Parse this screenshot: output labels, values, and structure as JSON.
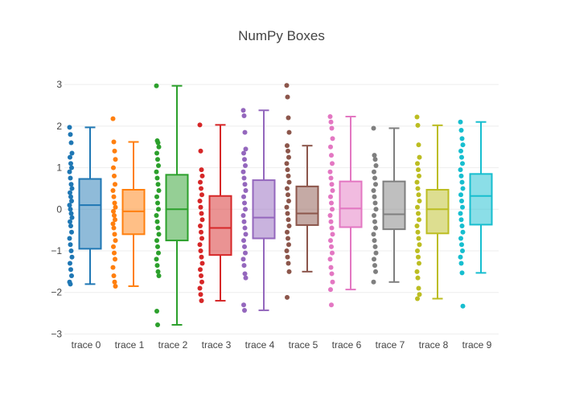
{
  "chart_data": {
    "type": "box",
    "title": "NumPy Boxes",
    "xlabel": "",
    "ylabel": "",
    "ylim": [
      -3.05,
      3.1
    ],
    "grid": true,
    "legend": "none",
    "y_ticks": [
      {
        "value": 3,
        "label": "3"
      },
      {
        "value": 2,
        "label": "2"
      },
      {
        "value": 1,
        "label": "1"
      },
      {
        "value": 0,
        "label": "0"
      },
      {
        "value": -1,
        "label": "−1"
      },
      {
        "value": -2,
        "label": "−2"
      },
      {
        "value": -3,
        "label": "−3"
      }
    ],
    "categories": [
      "trace 0",
      "trace 1",
      "trace 2",
      "trace 3",
      "trace 4",
      "trace 5",
      "trace 6",
      "trace 7",
      "trace 8",
      "trace 9"
    ],
    "series": [
      {
        "color": "#1f77b4",
        "min": -1.8,
        "q1": -0.95,
        "median": 0.1,
        "q3": 0.73,
        "max": 1.97,
        "points": [
          1.97,
          1.8,
          1.6,
          1.35,
          1.25,
          1.1,
          1.0,
          0.9,
          0.75,
          0.6,
          0.5,
          0.4,
          0.3,
          0.2,
          0.1,
          0.0,
          -0.1,
          -0.2,
          -0.3,
          -0.4,
          -0.55,
          -0.7,
          -0.85,
          -1.0,
          -1.15,
          -1.3,
          -1.45,
          -1.6,
          -1.75,
          -1.8
        ]
      },
      {
        "color": "#ff7f0e",
        "min": -1.85,
        "q1": -0.6,
        "median": -0.05,
        "q3": 0.47,
        "max": 1.62,
        "points": [
          2.18,
          1.62,
          1.4,
          1.2,
          1.0,
          0.8,
          0.6,
          0.45,
          0.3,
          0.15,
          0.05,
          -0.05,
          -0.15,
          -0.25,
          -0.35,
          -0.45,
          -0.6,
          -0.75,
          -0.9,
          -1.05,
          -1.2,
          -1.4,
          -1.6,
          -1.75,
          -1.85
        ]
      },
      {
        "color": "#2ca02c",
        "min": -2.78,
        "q1": -0.75,
        "median": 0.0,
        "q3": 0.83,
        "max": 2.97,
        "points": [
          2.97,
          1.65,
          1.6,
          1.5,
          1.35,
          1.2,
          1.05,
          0.9,
          0.75,
          0.6,
          0.45,
          0.3,
          0.15,
          0.0,
          -0.15,
          -0.3,
          -0.45,
          -0.6,
          -0.75,
          -0.9,
          -1.05,
          -1.2,
          -1.35,
          -1.5,
          -1.6,
          -2.45,
          -2.78
        ]
      },
      {
        "color": "#d62728",
        "min": -2.2,
        "q1": -1.1,
        "median": -0.45,
        "q3": 0.32,
        "max": 2.03,
        "points": [
          2.03,
          1.4,
          0.95,
          0.8,
          0.65,
          0.5,
          0.35,
          0.2,
          0.05,
          -0.1,
          -0.25,
          -0.4,
          -0.55,
          -0.7,
          -0.85,
          -1.0,
          -1.15,
          -1.3,
          -1.45,
          -1.6,
          -1.75,
          -1.9,
          -2.05,
          -2.2
        ]
      },
      {
        "color": "#9467bd",
        "min": -2.43,
        "q1": -0.7,
        "median": -0.2,
        "q3": 0.7,
        "max": 2.38,
        "points": [
          2.38,
          2.25,
          1.85,
          1.45,
          1.35,
          1.2,
          1.05,
          0.9,
          0.75,
          0.6,
          0.45,
          0.3,
          0.15,
          0.0,
          -0.15,
          -0.3,
          -0.45,
          -0.6,
          -0.75,
          -0.9,
          -1.05,
          -1.2,
          -1.35,
          -1.55,
          -1.65,
          -2.3,
          -2.43
        ]
      },
      {
        "color": "#8c564b",
        "min": -1.5,
        "q1": -0.38,
        "median": -0.1,
        "q3": 0.55,
        "max": 1.53,
        "points": [
          2.98,
          2.7,
          2.2,
          1.85,
          1.53,
          1.4,
          1.25,
          1.1,
          0.95,
          0.8,
          0.65,
          0.5,
          0.35,
          0.2,
          0.05,
          -0.1,
          -0.25,
          -0.4,
          -0.55,
          -0.7,
          -0.85,
          -1.0,
          -1.15,
          -1.3,
          -1.5,
          -2.12
        ]
      },
      {
        "color": "#e377c2",
        "min": -1.93,
        "q1": -0.43,
        "median": 0.02,
        "q3": 0.67,
        "max": 2.23,
        "points": [
          2.23,
          2.1,
          1.95,
          1.7,
          1.5,
          1.3,
          1.1,
          0.9,
          0.75,
          0.6,
          0.45,
          0.3,
          0.15,
          0.0,
          -0.15,
          -0.3,
          -0.45,
          -0.6,
          -0.75,
          -0.9,
          -1.05,
          -1.2,
          -1.4,
          -1.55,
          -1.75,
          -1.93,
          -2.3
        ]
      },
      {
        "color": "#7f7f7f",
        "min": -1.75,
        "q1": -0.48,
        "median": -0.12,
        "q3": 0.67,
        "max": 1.95,
        "points": [
          1.95,
          1.3,
          1.2,
          1.05,
          0.9,
          0.75,
          0.6,
          0.45,
          0.3,
          0.15,
          0.0,
          -0.15,
          -0.3,
          -0.45,
          -0.6,
          -0.75,
          -0.9,
          -1.05,
          -1.2,
          -1.35,
          -1.5,
          -1.75
        ]
      },
      {
        "color": "#bcbd22",
        "min": -2.15,
        "q1": -0.58,
        "median": 0.0,
        "q3": 0.47,
        "max": 2.02,
        "points": [
          2.22,
          2.02,
          1.55,
          1.25,
          1.1,
          0.95,
          0.8,
          0.65,
          0.5,
          0.35,
          0.2,
          0.05,
          -0.1,
          -0.25,
          -0.4,
          -0.55,
          -0.7,
          -0.85,
          -1.0,
          -1.15,
          -1.3,
          -1.5,
          -1.65,
          -1.9,
          -2.05,
          -2.15
        ]
      },
      {
        "color": "#17becf",
        "min": -1.53,
        "q1": -0.37,
        "median": 0.32,
        "q3": 0.85,
        "max": 2.1,
        "points": [
          2.1,
          1.9,
          1.7,
          1.55,
          1.4,
          1.25,
          1.1,
          0.95,
          0.8,
          0.65,
          0.5,
          0.35,
          0.2,
          0.05,
          -0.1,
          -0.25,
          -0.4,
          -0.55,
          -0.7,
          -0.85,
          -1.0,
          -1.15,
          -1.3,
          -1.53,
          -2.33
        ]
      }
    ]
  }
}
